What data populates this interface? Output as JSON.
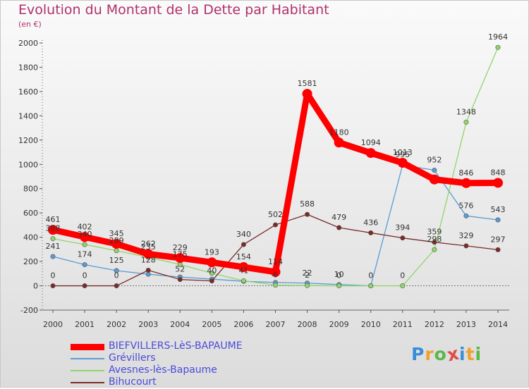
{
  "title": "Evolution du Montant de la Dette par Habitant",
  "subtitle": "(en €)",
  "logo": {
    "text": "Proxiti",
    "colors": [
      "#3a8ed8",
      "#f0a030",
      "#58b848",
      "#e04a4a",
      "#3a8ed8",
      "#f0a030",
      "#58b848"
    ]
  },
  "chart_data": {
    "type": "line",
    "title": "Evolution du Montant de la Dette par Habitant",
    "subtitle": "(en €)",
    "xlabel": "",
    "ylabel": "",
    "x": [
      "2000",
      "2001",
      "2002",
      "2003",
      "2004",
      "2005",
      "2006",
      "2007",
      "2008",
      "2009",
      "2010",
      "2011",
      "2012",
      "2013",
      "2014"
    ],
    "ylim": [
      -200,
      2000
    ],
    "yticks": [
      -200,
      0,
      200,
      400,
      600,
      800,
      1000,
      1200,
      1400,
      1600,
      1800,
      2000
    ],
    "grid": false,
    "legend_position": "bottom-left",
    "series": [
      {
        "name": "BIEFVILLERS-LèS-BAPAUME",
        "color": "#ff0000",
        "bold": true,
        "values": [
          461,
          402,
          345,
          262,
          229,
          193,
          154,
          114,
          1581,
          1180,
          1094,
          1013,
          876,
          846,
          848
        ],
        "labels": [
          "461",
          "402",
          "345",
          "262",
          "229",
          "193",
          "154",
          "114",
          "1581",
          "1180",
          "1094",
          "1013",
          "",
          "846",
          "848"
        ]
      },
      {
        "name": "Grévillers",
        "color": "#5b9bd5",
        "values": [
          241,
          174,
          125,
          95,
          72,
          55,
          37,
          27,
          22,
          10,
          0,
          995,
          952,
          576,
          543
        ],
        "labels": [
          "241",
          "174",
          "125",
          "",
          "",
          "",
          "",
          "",
          "22",
          "10",
          "0",
          "995",
          "952",
          "576",
          "543"
        ]
      },
      {
        "name": "Avesnes-lès-Bapaume",
        "color": "#8fd66a",
        "values": [
          388,
          340,
          289,
          235,
          175,
          104,
          41,
          6,
          2,
          0,
          0,
          0,
          298,
          1348,
          1964
        ],
        "labels": [
          "388",
          "340",
          "289",
          "235",
          "175",
          "",
          "41",
          "6",
          "2",
          "0",
          "",
          "0",
          "298",
          "1348",
          "1964"
        ]
      },
      {
        "name": "Bihucourt",
        "color": "#7b2a2a",
        "values": [
          0,
          0,
          0,
          128,
          52,
          40,
          340,
          502,
          588,
          479,
          436,
          394,
          359,
          329,
          297
        ],
        "labels": [
          "0",
          "0",
          "0",
          "128",
          "52",
          "40",
          "340",
          "502",
          "588",
          "479",
          "436",
          "394",
          "359",
          "329",
          "297"
        ]
      }
    ]
  }
}
